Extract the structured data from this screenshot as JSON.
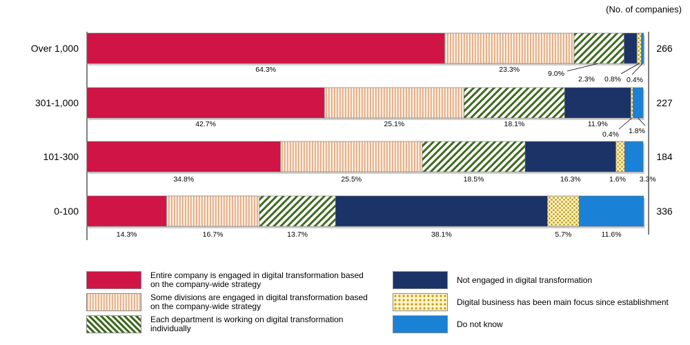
{
  "units_label": "(No. of companies)",
  "chart_data": {
    "type": "bar",
    "orientation": "horizontal",
    "stacked": true,
    "normalized": true,
    "categories": [
      "Over 1,000",
      "301-1,000",
      "101-300",
      "0-100"
    ],
    "totals": [
      "266",
      "227",
      "184",
      "336"
    ],
    "series": [
      {
        "name": "Entire company is engaged in digital transformation based on the company-wide strategy",
        "values": [
          64.3,
          42.7,
          34.8,
          14.3
        ],
        "labels": [
          "64.3%",
          "42.7%",
          "34.8%",
          "14.3%"
        ],
        "color": "#d01446",
        "pattern": "solid"
      },
      {
        "name": "Some divisions are engaged in digital transformation based on the company-wide strategy",
        "values": [
          23.3,
          25.1,
          25.5,
          16.7
        ],
        "labels": [
          "23.3%",
          "25.1%",
          "25.5%",
          "16.7%"
        ],
        "color": "#f6dcc4",
        "pattern": "vertical-stripes"
      },
      {
        "name": "Each department is working on digital transformation individually",
        "values": [
          9.0,
          18.1,
          18.5,
          13.7
        ],
        "labels": [
          "9.0%",
          "18.1%",
          "18.5%",
          "13.7%"
        ],
        "color": "#3e6a1e",
        "pattern": "diagonal-stripes"
      },
      {
        "name": "Not engaged in digital transformation",
        "values": [
          2.3,
          11.9,
          16.3,
          38.1
        ],
        "labels": [
          "2.3%",
          "11.9%",
          "16.3%",
          "38.1%"
        ],
        "color": "#1c3368",
        "pattern": "solid"
      },
      {
        "name": "Digital business has been main focus since establishment",
        "values": [
          0.8,
          0.4,
          1.6,
          5.7
        ],
        "labels": [
          "0.8%",
          "0.4%",
          "1.6%",
          "5.7%"
        ],
        "color": "#e2b526",
        "pattern": "checker"
      },
      {
        "name": "Do not know",
        "values": [
          0.4,
          1.8,
          3.3,
          11.6
        ],
        "labels": [
          "0.4%",
          "1.8%",
          "3.3%",
          "11.6%"
        ],
        "color": "#1a82d6",
        "pattern": "solid"
      }
    ],
    "xlim": [
      0,
      100
    ],
    "legend_position": "bottom"
  }
}
